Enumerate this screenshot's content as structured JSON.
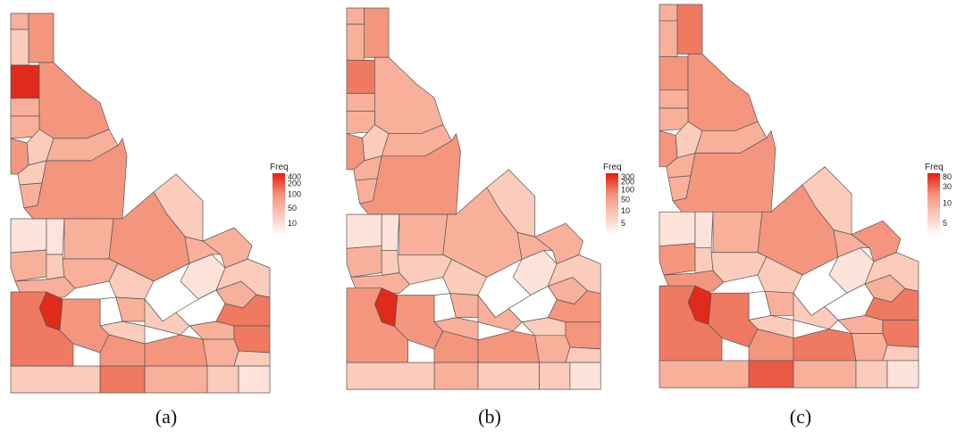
{
  "colors": {
    "level_0": "#ffffff",
    "level_1": "#fde3da",
    "level_2": "#fbcbbb",
    "level_3": "#f8b09b",
    "level_4": "#f4967d",
    "level_5": "#ef7a61",
    "level_6": "#e85a44",
    "level_7": "#e02a1b"
  },
  "panels": [
    {
      "caption": "(a)",
      "legend": {
        "title": "Freq",
        "ticks": [
          "400",
          "200",
          "100",
          "50",
          "10"
        ]
      },
      "county_levels": [
        3,
        4,
        2,
        7,
        3,
        4,
        3,
        2,
        4,
        3,
        2,
        3,
        4,
        1,
        3,
        1,
        2,
        3,
        4,
        3,
        3,
        2,
        0,
        3,
        1,
        7,
        5,
        4,
        2,
        2,
        0,
        3,
        5,
        3,
        5,
        2,
        3,
        4,
        4,
        3,
        2,
        5,
        3,
        2,
        1,
        2,
        3,
        2
      ]
    },
    {
      "caption": "(b)",
      "legend": {
        "title": "Freq",
        "ticks": [
          "300",
          "200",
          "100",
          "50",
          "10",
          "5"
        ]
      },
      "county_levels": [
        3,
        4,
        3,
        5,
        3,
        3,
        3,
        2,
        4,
        3,
        3,
        3,
        4,
        1,
        3,
        1,
        2,
        3,
        3,
        3,
        2,
        2,
        0,
        3,
        1,
        7,
        4,
        4,
        3,
        3,
        0,
        3,
        4,
        2,
        4,
        2,
        3,
        4,
        4,
        3,
        2,
        3,
        2,
        2,
        1,
        2,
        3,
        2
      ]
    },
    {
      "caption": "(c)",
      "legend": {
        "title": "Freq",
        "ticks": [
          "80",
          "30",
          "10",
          "5"
        ]
      },
      "county_levels": [
        3,
        5,
        3,
        4,
        3,
        4,
        3,
        2,
        4,
        3,
        3,
        3,
        4,
        1,
        4,
        1,
        2,
        3,
        4,
        4,
        2,
        2,
        0,
        3,
        1,
        7,
        5,
        5,
        2,
        2,
        0,
        3,
        5,
        3,
        5,
        2,
        3,
        4,
        5,
        3,
        2,
        6,
        3,
        2,
        1,
        3,
        4,
        2
      ]
    }
  ]
}
